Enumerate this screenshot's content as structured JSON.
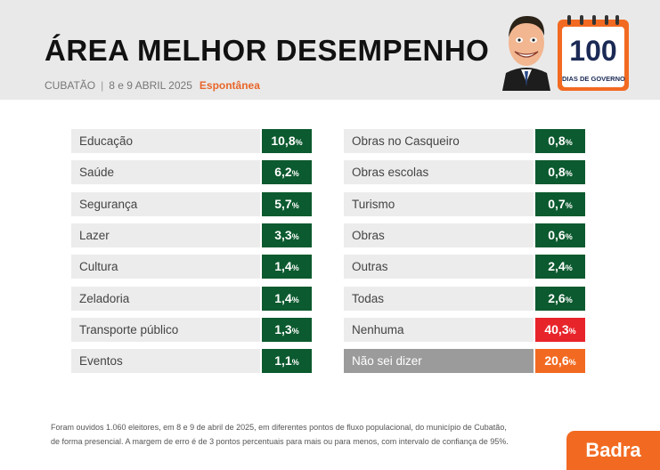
{
  "header": {
    "title": "ÁREA MELHOR DESEMPENHO",
    "city": "CUBATÃO",
    "date": "8 e 9 ABRIL 2025",
    "type": "Espontânea",
    "badge_number": "100",
    "badge_text": "DIAS DE GOVERNO"
  },
  "chart_data": {
    "type": "table",
    "unit": "%",
    "colors": {
      "default": "#0c5a2f",
      "Nenhuma": "#e8242b",
      "Não sei dizer": "#f26a21",
      "label_bg": "#ececec",
      "label_bg_highlight": "#9b9b9b"
    },
    "items": [
      {
        "label": "Educação",
        "value": "10,8",
        "column": 1
      },
      {
        "label": "Saúde",
        "value": "6,2",
        "column": 1
      },
      {
        "label": "Segurança",
        "value": "5,7",
        "column": 1
      },
      {
        "label": "Lazer",
        "value": "3,3",
        "column": 1
      },
      {
        "label": "Cultura",
        "value": "1,4",
        "column": 1
      },
      {
        "label": "Zeladoria",
        "value": "1,4",
        "column": 1
      },
      {
        "label": "Transporte público",
        "value": "1,3",
        "column": 1
      },
      {
        "label": "Eventos",
        "value": "1,1",
        "column": 1
      },
      {
        "label": "Obras no Casqueiro",
        "value": "0,8",
        "column": 2
      },
      {
        "label": "Obras escolas",
        "value": "0,8",
        "column": 2
      },
      {
        "label": "Turismo",
        "value": "0,7",
        "column": 2
      },
      {
        "label": "Obras",
        "value": "0,6",
        "column": 2
      },
      {
        "label": "Outras",
        "value": "2,4",
        "column": 2
      },
      {
        "label": "Todas",
        "value": "2,6",
        "column": 2
      },
      {
        "label": "Nenhuma",
        "value": "40,3",
        "column": 2
      },
      {
        "label": "Não sei dizer",
        "value": "20,6",
        "column": 2
      }
    ]
  },
  "footnote": {
    "line1": "Foram ouvidos 1.060 eleitores, em 8 e 9 de abril de 2025, em diferentes pontos de fluxo populacional, do município de Cubatão,",
    "line2": "de forma presencial. A margem de erro é de 3 pontos percentuais para mais ou para menos, com intervalo de confiança de 95%."
  },
  "brand": "Badra"
}
